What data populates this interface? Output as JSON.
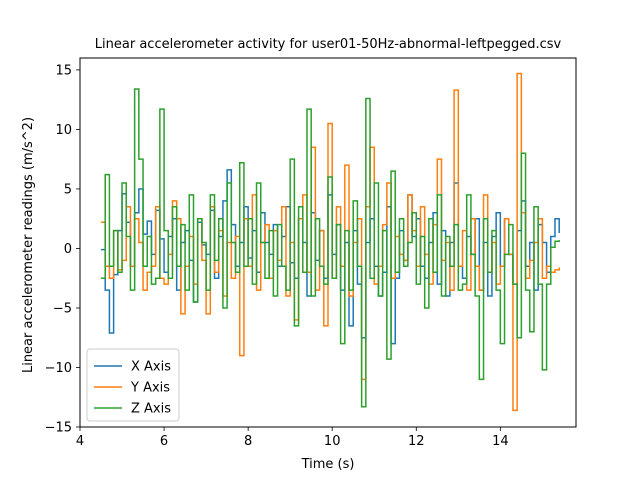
{
  "chart_data": {
    "type": "line",
    "title": "Linear accelerometer activity for user01-50Hz-abnormal-leftpegged.csv",
    "xlabel": "Time (s)",
    "ylabel": "Linear accelerometer readings (m/s^2)",
    "xlim": [
      4.0,
      15.8
    ],
    "ylim": [
      -15,
      16
    ],
    "xticks": [
      4,
      6,
      8,
      10,
      12,
      14
    ],
    "yticks": [
      -15,
      -10,
      -5,
      0,
      5,
      10,
      15
    ],
    "grid": false,
    "legend_position": "lower-left",
    "step": true,
    "series": [
      {
        "name": "X Axis",
        "color": "#1f77b4",
        "x": [
          4.5,
          4.6,
          4.7,
          4.8,
          4.9,
          5.0,
          5.1,
          5.2,
          5.3,
          5.4,
          5.5,
          5.6,
          5.7,
          5.8,
          5.9,
          6.0,
          6.1,
          6.2,
          6.3,
          6.4,
          6.5,
          6.6,
          6.7,
          6.8,
          6.9,
          7.0,
          7.1,
          7.2,
          7.3,
          7.4,
          7.5,
          7.6,
          7.7,
          7.8,
          7.9,
          8.0,
          8.1,
          8.2,
          8.3,
          8.4,
          8.5,
          8.6,
          8.7,
          8.8,
          8.9,
          9.0,
          9.1,
          9.2,
          9.3,
          9.4,
          9.5,
          9.6,
          9.7,
          9.8,
          9.9,
          10.0,
          10.1,
          10.2,
          10.3,
          10.4,
          10.5,
          10.6,
          10.7,
          10.8,
          10.9,
          11.0,
          11.1,
          11.2,
          11.3,
          11.4,
          11.5,
          11.6,
          11.7,
          11.8,
          11.9,
          12.0,
          12.1,
          12.2,
          12.3,
          12.4,
          12.5,
          12.6,
          12.7,
          12.8,
          12.9,
          13.0,
          13.1,
          13.2,
          13.3,
          13.4,
          13.5,
          13.6,
          13.7,
          13.8,
          13.9,
          14.0,
          14.1,
          14.2,
          14.3,
          14.4,
          14.5,
          14.6,
          14.7,
          14.8,
          14.9,
          15.0,
          15.1,
          15.2,
          15.3,
          15.4
        ],
        "y": [
          -0.1,
          -3.5,
          -7.1,
          -2.2,
          1.5,
          4.6,
          2.2,
          -1.5,
          3.0,
          5.0,
          1.2,
          2.3,
          -0.5,
          3.2,
          0.8,
          -2.0,
          1.0,
          2.5,
          -3.5,
          0.5,
          1.5,
          -1.0,
          -4.5,
          2.2,
          0.3,
          -0.5,
          3.2,
          -2.5,
          1.0,
          4.0,
          6.6,
          2.0,
          -1.5,
          0.5,
          3.5,
          -0.8,
          1.5,
          -2.0,
          3.0,
          0.5,
          -0.5,
          2.0,
          -1.5,
          1.0,
          3.5,
          -1.2,
          -2.5,
          2.5,
          0.5,
          -4.0,
          3.0,
          -1.0,
          1.5,
          -2.5,
          4.5,
          -0.5,
          2.0,
          -3.5,
          0.5,
          -6.5,
          1.5,
          -3.0,
          -7.5,
          0.5,
          2.5,
          -1.5,
          -4.0,
          -2.0,
          3.5,
          -8.0,
          -2.5,
          1.5,
          -1.0,
          4.5,
          1.0,
          2.5,
          -1.5,
          -2.5,
          0.5,
          3.0,
          -3.0,
          1.5,
          -4.0,
          0.5,
          5.5,
          -1.5,
          -2.5,
          1.0,
          -0.5,
          2.5,
          -3.5,
          0.5,
          -4.0,
          1.0,
          3.0,
          -1.5,
          2.5,
          -0.5,
          -3.0,
          1.5,
          4.0,
          -1.5,
          0.5,
          -3.5,
          2.0,
          0.5,
          -2.0,
          1.0,
          2.5,
          1.3
        ]
      },
      {
        "name": "Y Axis",
        "color": "#ff7f0e",
        "x": [
          4.5,
          4.6,
          4.7,
          4.8,
          4.9,
          5.0,
          5.1,
          5.2,
          5.3,
          5.4,
          5.5,
          5.6,
          5.7,
          5.8,
          5.9,
          6.0,
          6.1,
          6.2,
          6.3,
          6.4,
          6.5,
          6.6,
          6.7,
          6.8,
          6.9,
          7.0,
          7.1,
          7.2,
          7.3,
          7.4,
          7.5,
          7.6,
          7.7,
          7.8,
          7.9,
          8.0,
          8.1,
          8.2,
          8.3,
          8.4,
          8.5,
          8.6,
          8.7,
          8.8,
          8.9,
          9.0,
          9.1,
          9.2,
          9.3,
          9.4,
          9.5,
          9.6,
          9.7,
          9.8,
          9.9,
          10.0,
          10.1,
          10.2,
          10.3,
          10.4,
          10.5,
          10.6,
          10.7,
          10.8,
          10.9,
          11.0,
          11.1,
          11.2,
          11.3,
          11.4,
          11.5,
          11.6,
          11.7,
          11.8,
          11.9,
          12.0,
          12.1,
          12.2,
          12.3,
          12.4,
          12.5,
          12.6,
          12.7,
          12.8,
          12.9,
          13.0,
          13.1,
          13.2,
          13.3,
          13.4,
          13.5,
          13.6,
          13.7,
          13.8,
          13.9,
          14.0,
          14.1,
          14.2,
          14.3,
          14.4,
          14.5,
          14.6,
          14.7,
          14.8,
          14.9,
          15.0,
          15.1,
          15.2,
          15.3,
          15.4
        ],
        "y": [
          2.2,
          -1.5,
          -2.5,
          1.5,
          -1.8,
          -1.0,
          3.5,
          -1.5,
          2.5,
          0.5,
          -3.5,
          -2.0,
          -1.5,
          3.5,
          -2.5,
          -3.0,
          -0.5,
          4.0,
          2.5,
          -5.5,
          -1.5,
          1.0,
          -3.0,
          2.5,
          -1.0,
          -5.5,
          3.5,
          -2.0,
          1.5,
          -4.0,
          0.5,
          -2.5,
          1.0,
          -9.0,
          2.5,
          -1.5,
          4.5,
          -3.5,
          0.5,
          2.0,
          -2.5,
          1.5,
          -1.0,
          3.5,
          -4.0,
          0.5,
          -6.0,
          2.5,
          4.5,
          -2.0,
          8.5,
          -3.5,
          1.5,
          -6.5,
          10.5,
          -2.5,
          3.5,
          -1.5,
          7.0,
          -4.0,
          0.5,
          2.5,
          -11.0,
          3.5,
          8.5,
          -3.0,
          -1.5,
          2.0,
          5.5,
          -2.5,
          1.0,
          -0.5,
          -1.0,
          4.5,
          1.5,
          -1.5,
          3.5,
          -0.5,
          -3.0,
          2.0,
          7.5,
          -1.0,
          0.5,
          -3.5,
          13.3,
          -1.5,
          1.5,
          -3.5,
          2.5,
          -1.5,
          -3.5,
          4.5,
          -2.0,
          0.5,
          -3.0,
          -1.5,
          2.5,
          -0.5,
          -13.6,
          14.7,
          3.0,
          -2.5,
          -1.0,
          0.5,
          2.5,
          -2.5,
          -1.5,
          -2.0,
          -1.8,
          -1.6
        ]
      },
      {
        "name": "Z Axis",
        "color": "#2ca02c",
        "x": [
          4.5,
          4.6,
          4.7,
          4.8,
          4.9,
          5.0,
          5.1,
          5.2,
          5.3,
          5.4,
          5.5,
          5.6,
          5.7,
          5.8,
          5.9,
          6.0,
          6.1,
          6.2,
          6.3,
          6.4,
          6.5,
          6.6,
          6.7,
          6.8,
          6.9,
          7.0,
          7.1,
          7.2,
          7.3,
          7.4,
          7.5,
          7.6,
          7.7,
          7.8,
          7.9,
          8.0,
          8.1,
          8.2,
          8.3,
          8.4,
          8.5,
          8.6,
          8.7,
          8.8,
          8.9,
          9.0,
          9.1,
          9.2,
          9.3,
          9.4,
          9.5,
          9.6,
          9.7,
          9.8,
          9.9,
          10.0,
          10.1,
          10.2,
          10.3,
          10.4,
          10.5,
          10.6,
          10.7,
          10.8,
          10.9,
          11.0,
          11.1,
          11.2,
          11.3,
          11.4,
          11.5,
          11.6,
          11.7,
          11.8,
          11.9,
          12.0,
          12.1,
          12.2,
          12.3,
          12.4,
          12.5,
          12.6,
          12.7,
          12.8,
          12.9,
          13.0,
          13.1,
          13.2,
          13.3,
          13.4,
          13.5,
          13.6,
          13.7,
          13.8,
          13.9,
          14.0,
          14.1,
          14.2,
          14.3,
          14.4,
          14.5,
          14.6,
          14.7,
          14.8,
          14.9,
          15.0,
          15.1,
          15.2,
          15.3,
          15.4
        ],
        "y": [
          -2.5,
          6.2,
          -1.5,
          1.5,
          -2.0,
          5.5,
          1.0,
          -3.5,
          13.4,
          7.5,
          -1.5,
          1.0,
          -3.0,
          -2.5,
          11.7,
          1.5,
          -2.5,
          3.5,
          -1.5,
          2.0,
          -3.5,
          4.5,
          -4.5,
          2.5,
          0.5,
          -3.5,
          4.5,
          -1.0,
          2.5,
          -5.0,
          5.5,
          0.5,
          -2.0,
          7.2,
          -1.5,
          2.5,
          -3.0,
          5.5,
          0.5,
          -2.5,
          1.5,
          -4.0,
          2.0,
          -1.5,
          -3.5,
          7.5,
          -6.5,
          3.5,
          -2.0,
          11.7,
          -4.0,
          2.5,
          -1.5,
          -3.0,
          6.0,
          -2.5,
          2.0,
          -8.0,
          1.5,
          -3.5,
          4.0,
          -1.5,
          -13.3,
          12.6,
          -2.5,
          5.5,
          -4.0,
          1.5,
          -9.3,
          6.5,
          -2.0,
          2.5,
          -1.5,
          0.5,
          3.0,
          -3.0,
          1.0,
          -5.0,
          2.5,
          -2.0,
          4.5,
          -4.0,
          1.0,
          -1.5,
          2.0,
          -3.5,
          -3.0,
          4.5,
          -0.5,
          -4.0,
          -11.0,
          2.5,
          -2.0,
          1.5,
          -3.5,
          -8.0,
          -0.5,
          2.0,
          -3.0,
          -7.5,
          8.0,
          -3.5,
          -7.0,
          3.5,
          -3.0,
          -10.2,
          -3.0,
          0.1,
          0.6,
          0.7
        ]
      }
    ]
  }
}
